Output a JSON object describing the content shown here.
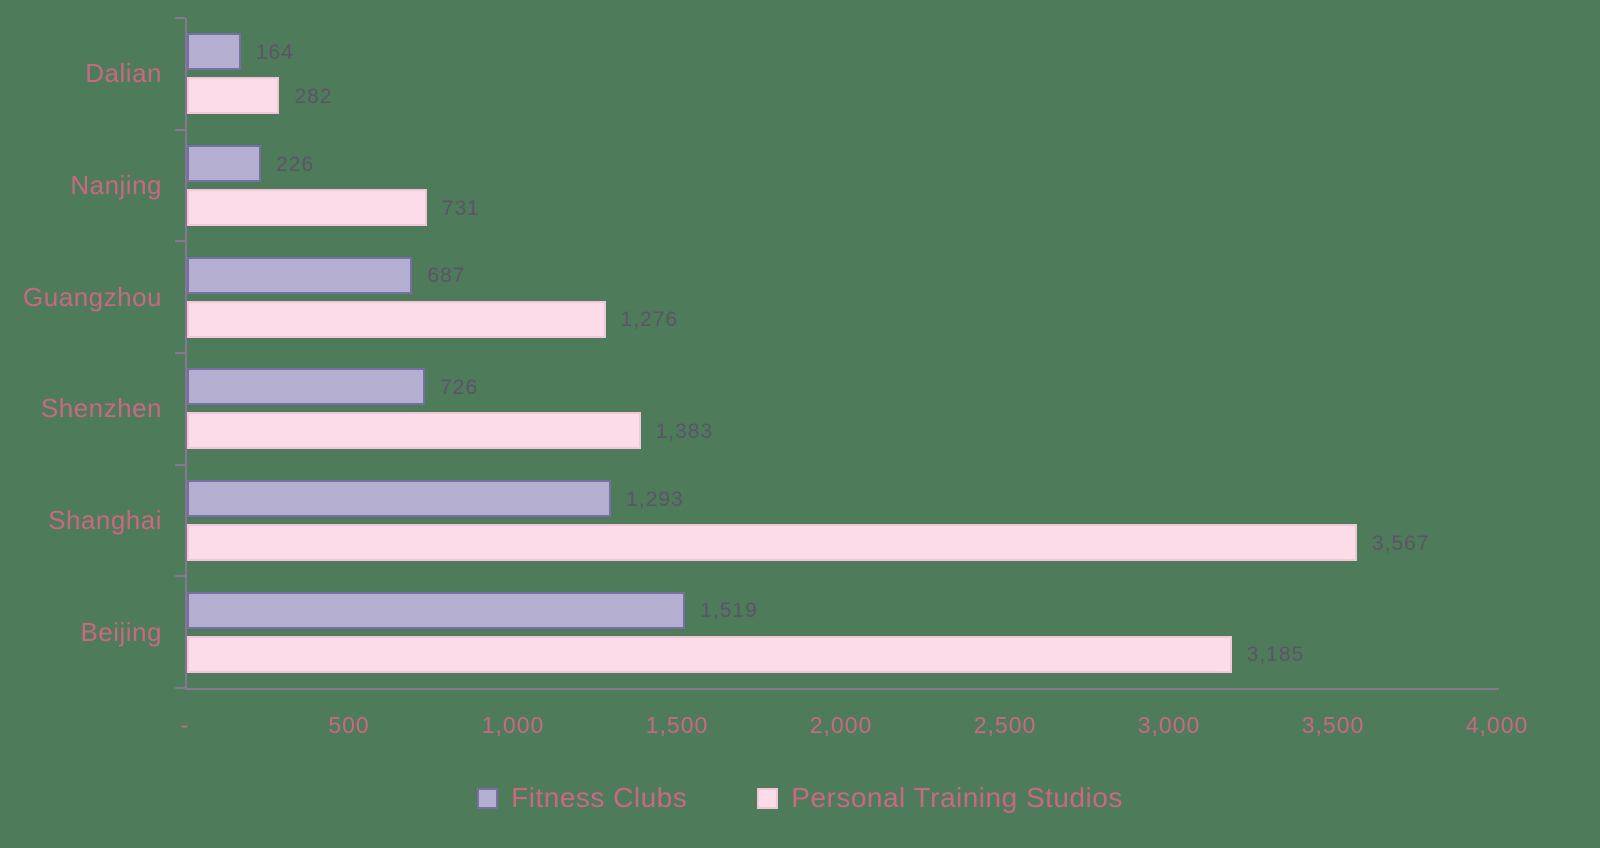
{
  "chart_data": {
    "type": "bar",
    "orientation": "horizontal",
    "title": "",
    "categories": [
      "Dalian",
      "Nanjing",
      "Guangzhou",
      "Shenzhen",
      "Shanghai",
      "Beijing"
    ],
    "series": [
      {
        "name": "Fitness Clubs",
        "values": [
          164,
          226,
          687,
          726,
          1293,
          1519
        ],
        "labels": [
          "164",
          "226",
          "687",
          "726",
          "1,293",
          "1,519"
        ],
        "fill": "#b4aed0",
        "border": "#776ea6"
      },
      {
        "name": "Personal Training Studios",
        "values": [
          282,
          731,
          1276,
          1383,
          3567,
          3185
        ],
        "labels": [
          "282",
          "731",
          "1,276",
          "1,383",
          "3,567",
          "3,185"
        ],
        "fill": "#fcdce8",
        "border": "#f2c6d6"
      }
    ],
    "x_axis": {
      "min": 0,
      "max": 4000,
      "tick_labels": [
        "-",
        "500",
        "1,000",
        "1,500",
        "2,000",
        "2,500",
        "3,000",
        "3,500",
        "4,000"
      ]
    },
    "legend": {
      "position": "bottom",
      "entries": [
        "Fitness Clubs",
        "Personal Training Studios"
      ]
    },
    "grid": false,
    "colors": {
      "background": "#4e7b5a",
      "axis": "#8a7590",
      "category_text": "#c96882",
      "tick_text": "#c96882",
      "value_text": "#5d5368",
      "legend_text": "#c96882"
    }
  }
}
